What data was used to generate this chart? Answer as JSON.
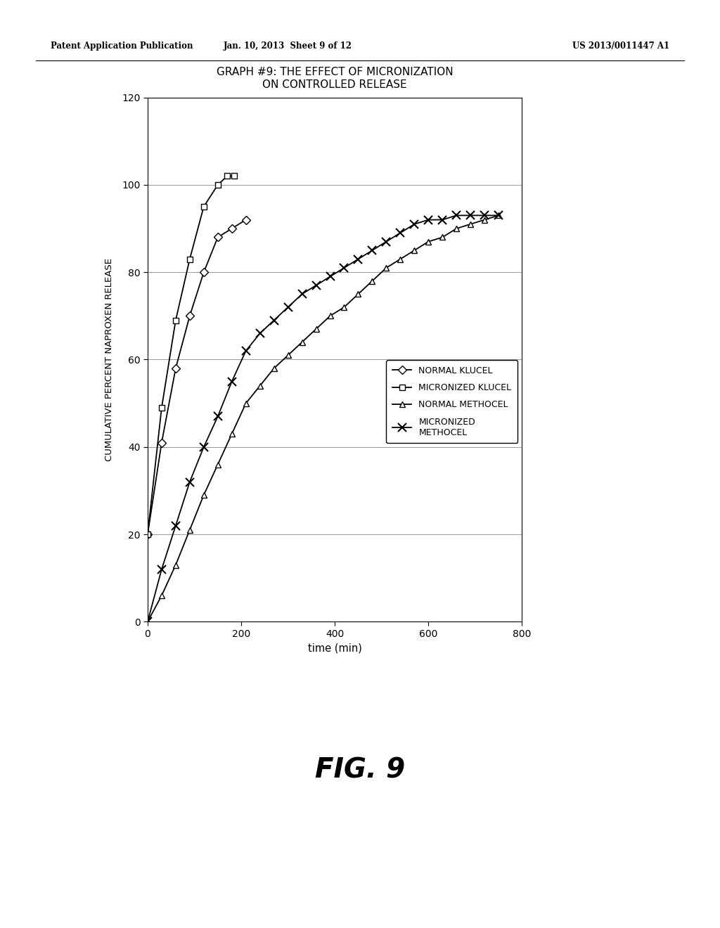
{
  "title_line1": "GRAPH #9: THE EFFECT OF MICRONIZATION",
  "title_line2": "ON CONTROLLED RELEASE",
  "xlabel": "time (min)",
  "ylabel": "CUMULATIVE PERCENT NAPROXEN RELEASE",
  "xlim": [
    0,
    800
  ],
  "ylim": [
    0,
    120
  ],
  "xticks": [
    0,
    200,
    400,
    600,
    800
  ],
  "yticks": [
    0,
    20,
    40,
    60,
    80,
    100,
    120
  ],
  "normal_klucel": {
    "x": [
      0,
      30,
      60,
      90,
      120,
      150,
      180,
      210
    ],
    "y": [
      20,
      41,
      58,
      70,
      80,
      88,
      90,
      92
    ],
    "label": "NORMAL KLUCEL",
    "marker": "D",
    "markersize": 6
  },
  "micronized_klucel": {
    "x": [
      0,
      30,
      60,
      90,
      120,
      150,
      170,
      185
    ],
    "y": [
      20,
      49,
      69,
      83,
      95,
      100,
      102,
      102
    ],
    "label": "MICRONIZED KLUCEL",
    "marker": "s",
    "markersize": 6
  },
  "normal_methocel": {
    "x": [
      0,
      30,
      60,
      90,
      120,
      150,
      180,
      210,
      240,
      270,
      300,
      330,
      360,
      390,
      420,
      450,
      480,
      510,
      540,
      570,
      600,
      630,
      660,
      690,
      720,
      750
    ],
    "y": [
      0,
      6,
      13,
      21,
      29,
      36,
      43,
      50,
      54,
      58,
      61,
      64,
      67,
      70,
      72,
      75,
      78,
      81,
      83,
      85,
      87,
      88,
      90,
      91,
      92,
      93
    ],
    "label": "NORMAL METHOCEL",
    "marker": "^",
    "markersize": 6
  },
  "micronized_methocel": {
    "x": [
      0,
      30,
      60,
      90,
      120,
      150,
      180,
      210,
      240,
      270,
      300,
      330,
      360,
      390,
      420,
      450,
      480,
      510,
      540,
      570,
      600,
      630,
      660,
      690,
      720,
      750
    ],
    "y": [
      0,
      12,
      22,
      32,
      40,
      47,
      55,
      62,
      66,
      69,
      72,
      75,
      77,
      79,
      81,
      83,
      85,
      87,
      89,
      91,
      92,
      92,
      93,
      93,
      93,
      93
    ],
    "label": "MICRONIZED\nMETHOCEL",
    "marker": "x",
    "markersize": 8,
    "markeredgewidth": 1.5
  },
  "line_color": "#000000",
  "background_color": "#ffffff",
  "header_left": "Patent Application Publication",
  "header_center": "Jan. 10, 2013  Sheet 9 of 12",
  "header_right": "US 2013/0011447 A1",
  "fig_label": "FIG. 9"
}
